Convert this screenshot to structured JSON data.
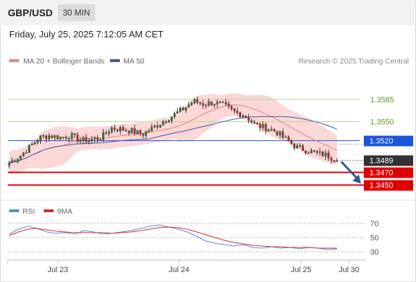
{
  "header": {
    "symbol": "GBP/USD",
    "timeframe": "30 MIN",
    "datetime": "Friday, July 25, 2025 7:12:05 AM CET"
  },
  "legend": {
    "ma20": "MA 20 + Bollinger Bands",
    "ma50": "MA 50",
    "credit": "Research © 2025 Trading Central",
    "rsi": "RSI",
    "rsi_ma": "9MA"
  },
  "colors": {
    "bullish": "#2e7d32",
    "bearish": "#c62828",
    "ma20": "#e88080",
    "ma50": "#3a5ba0",
    "bollinger_fill": "#f9c9c9",
    "resistance": "#b5d98c",
    "pivot": "#1a56db",
    "support": "#e00000",
    "last_price_bg": "#333333",
    "rsi_line": "#5a8ad8",
    "rsi_ma_line": "#d22b2b",
    "forecast_arrow": "#2f5597"
  },
  "chart_data": [
    {
      "type": "candlestick",
      "title": "GBP/USD 30 MIN",
      "ylim": [
        1.3435,
        1.3635
      ],
      "x_tick_labels": [
        "Jul 23",
        "Jul 24",
        "Jul 25",
        "Jul 30"
      ],
      "overlays": [
        "MA 20 + Bollinger Bands",
        "MA 50"
      ],
      "levels": [
        {
          "value": 1.3585,
          "label": "1.3585",
          "kind": "resistance"
        },
        {
          "value": 1.355,
          "label": "1.3550",
          "kind": "resistance"
        },
        {
          "value": 1.352,
          "label": "1.3520",
          "kind": "pivot"
        },
        {
          "value": 1.347,
          "label": "1.3470",
          "kind": "support"
        },
        {
          "value": 1.345,
          "label": "1.3450",
          "kind": "support"
        }
      ],
      "last_price": {
        "value": 1.3489,
        "label": "1.3489"
      },
      "forecast": {
        "from": 1.3489,
        "to": 1.345,
        "direction": "down"
      },
      "close_path": [
        1.3485,
        1.3495,
        1.351,
        1.3525,
        1.3528,
        1.3525,
        1.3528,
        1.352,
        1.3522,
        1.3525,
        1.354,
        1.3538,
        1.3535,
        1.353,
        1.354,
        1.355,
        1.356,
        1.357,
        1.3582,
        1.3578,
        1.358,
        1.3575,
        1.3565,
        1.356,
        1.3545,
        1.354,
        1.3535,
        1.3522,
        1.351,
        1.3505,
        1.35,
        1.3497,
        1.3489
      ]
    },
    {
      "type": "line",
      "title": "RSI",
      "ylim": [
        25,
        75
      ],
      "y_ticks": [
        70,
        50,
        30
      ],
      "series": [
        {
          "name": "RSI",
          "values": [
            55,
            62,
            66,
            63,
            58,
            56,
            57,
            55,
            60,
            58,
            55,
            56,
            58,
            60,
            63,
            66,
            68,
            65,
            62,
            58,
            52,
            45,
            42,
            40,
            38,
            40,
            36,
            35,
            37,
            35,
            36,
            34,
            36,
            35,
            33,
            34
          ]
        },
        {
          "name": "9MA",
          "values": [
            53,
            58,
            62,
            63,
            61,
            59,
            58,
            57,
            57,
            57,
            57,
            56,
            57,
            58,
            60,
            62,
            64,
            65,
            64,
            62,
            58,
            54,
            50,
            46,
            43,
            41,
            39,
            38,
            37,
            37,
            36,
            36,
            36,
            35,
            35,
            35
          ]
        }
      ]
    }
  ]
}
